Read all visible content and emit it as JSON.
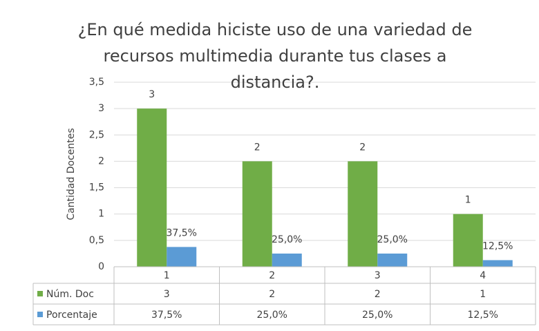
{
  "chart_data": {
    "type": "bar",
    "title": "¿En qué medida hiciste uso de una variedad de recursos multimedia durante tus clases a distancia?.",
    "y_label": "Cantidad Docentes",
    "categories": [
      "1",
      "2",
      "3",
      "4"
    ],
    "series": [
      {
        "name": "Núm. Doc",
        "color": "#70ad47",
        "values": [
          3,
          2,
          2,
          1
        ]
      },
      {
        "name": "Porcentaje",
        "color": "#5b9bd5",
        "values": [
          0.375,
          0.25,
          0.25,
          0.125
        ],
        "value_labels": [
          "37,5%",
          "25,0%",
          "25,0%",
          "12,5%"
        ]
      }
    ],
    "ylim": [
      0,
      3.5
    ],
    "yticks": [
      0,
      {
        "value": 0.5,
        "label": "0,5"
      },
      1,
      {
        "value": 1.5,
        "label": "1,5"
      },
      2,
      {
        "value": 2.5,
        "label": "2,5"
      },
      3,
      {
        "value": 3.5,
        "label": "3,5"
      }
    ],
    "grid": true,
    "data_table": true
  }
}
